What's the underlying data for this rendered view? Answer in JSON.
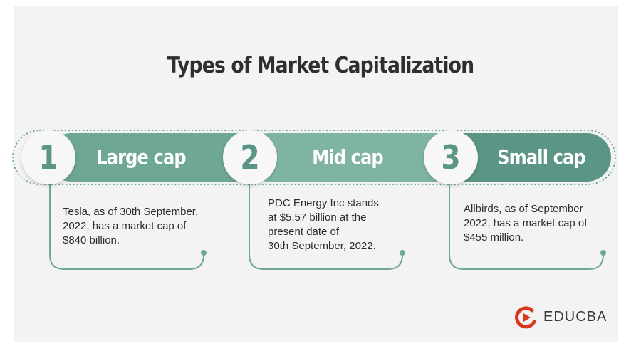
{
  "title": "Types of Market Capitalization",
  "colors": {
    "panel_bg": "#f3f3f3",
    "band1": "#6ea795",
    "band2": "#7fb4a3",
    "band3": "#5b9585",
    "connector": "#6ea795",
    "logo_red": "#d9381e"
  },
  "steps": [
    {
      "number": "1",
      "label": "Large cap",
      "description": [
        "Tesla, as of 30th September,",
        "2022, has a market cap of",
        "$840 billion."
      ]
    },
    {
      "number": "2",
      "label": "Mid cap",
      "description": [
        "PDC Energy Inc stands",
        "at $5.57 billion at the",
        "present date of",
        "30th September, 2022."
      ]
    },
    {
      "number": "3",
      "label": "Small cap",
      "description": [
        "Allbirds, as of September",
        "2022, has a market cap of",
        "$455 million."
      ]
    }
  ],
  "logo": {
    "text": "EDUCBA",
    "icon": "educba-logo-icon"
  }
}
